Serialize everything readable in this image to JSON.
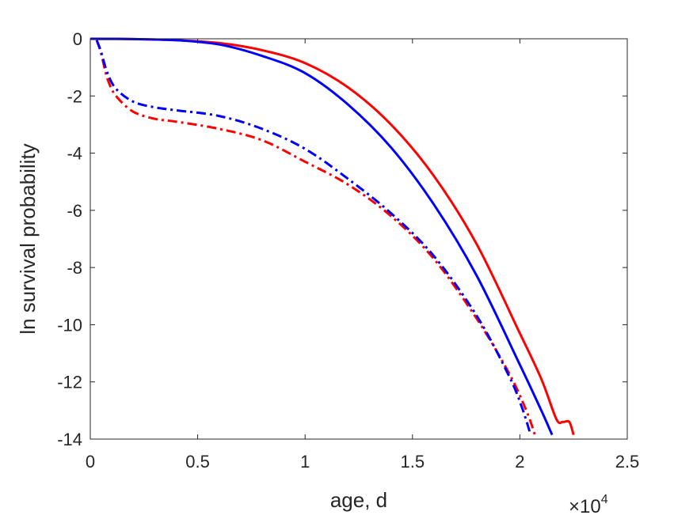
{
  "chart_data": {
    "type": "line",
    "xlabel": "age, d",
    "ylabel": "ln survival probability",
    "x_exponent_label": {
      "base": "×10",
      "exponent": "4"
    },
    "xlim": [
      0,
      25000
    ],
    "ylim": [
      -14,
      0
    ],
    "x_ticks": [
      0,
      5000,
      10000,
      15000,
      20000,
      25000
    ],
    "x_tick_labels": [
      "0",
      "0.5",
      "1",
      "1.5",
      "2",
      "2.5"
    ],
    "y_ticks": [
      0,
      -2,
      -4,
      -6,
      -8,
      -10,
      -12,
      -14
    ],
    "y_tick_labels": [
      "0",
      "-2",
      "-4",
      "-6",
      "-8",
      "-10",
      "-12",
      "-14"
    ],
    "grid": false,
    "legend": "none",
    "series": [
      {
        "color": "#ff0000",
        "style": "solid",
        "x": [
          0,
          2000,
          4000,
          6000,
          8000,
          10000,
          12000,
          14000,
          16000,
          18000,
          20000,
          21000,
          21700,
          22000,
          22300,
          22500
        ],
        "y": [
          0,
          -0.01,
          -0.05,
          -0.15,
          -0.4,
          -0.85,
          -1.7,
          -3.0,
          -4.8,
          -7.2,
          -10.3,
          -11.9,
          -13.3,
          -13.4,
          -13.4,
          -13.85
        ]
      },
      {
        "color": "#0000ff",
        "style": "solid",
        "x": [
          0,
          2000,
          4000,
          6000,
          8000,
          10000,
          12000,
          14000,
          16000,
          18000,
          20000,
          21000,
          21500
        ],
        "y": [
          0,
          -0.01,
          -0.05,
          -0.2,
          -0.6,
          -1.2,
          -2.3,
          -3.8,
          -5.8,
          -8.3,
          -11.4,
          -13.0,
          -13.85
        ]
      },
      {
        "color": "#ff0000",
        "style": "dashdot",
        "x": [
          300,
          500,
          800,
          1200,
          2000,
          3000,
          4000,
          6000,
          8000,
          10000,
          12000,
          14000,
          16000,
          18000,
          19500,
          20300,
          20700
        ],
        "y": [
          -0.05,
          -0.5,
          -1.4,
          -2.0,
          -2.55,
          -2.8,
          -2.9,
          -3.15,
          -3.55,
          -4.3,
          -5.1,
          -6.2,
          -7.7,
          -9.8,
          -11.7,
          -13.0,
          -13.85
        ]
      },
      {
        "color": "#0000ff",
        "style": "dashdot",
        "x": [
          300,
          500,
          800,
          1200,
          2000,
          3000,
          4000,
          6000,
          8000,
          10000,
          12000,
          14000,
          16000,
          18000,
          19500,
          20100,
          20500
        ],
        "y": [
          -0.05,
          -0.45,
          -1.2,
          -1.75,
          -2.2,
          -2.4,
          -2.5,
          -2.7,
          -3.15,
          -3.85,
          -4.9,
          -6.1,
          -7.6,
          -9.7,
          -11.8,
          -12.9,
          -13.85
        ]
      }
    ]
  }
}
